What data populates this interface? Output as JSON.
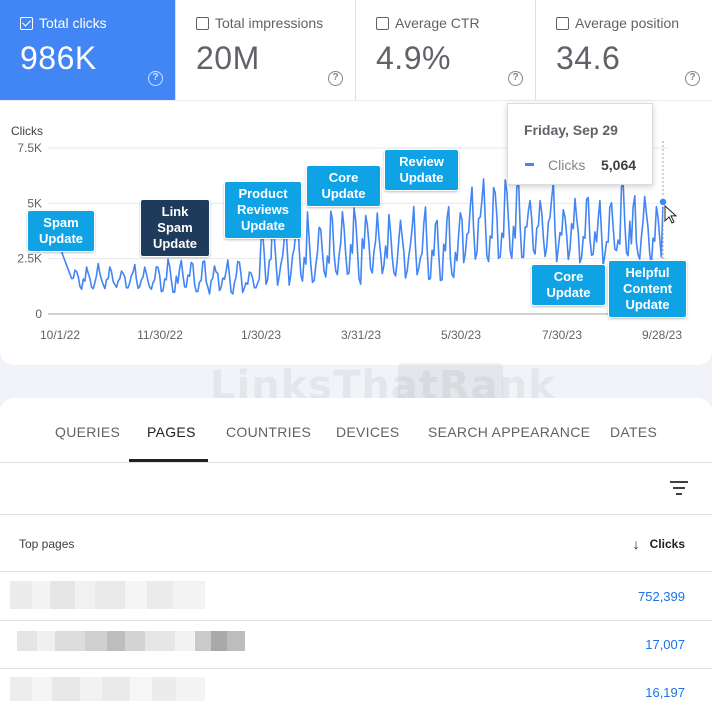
{
  "metrics": [
    {
      "label": "Total clicks",
      "value": "986K",
      "checked": true
    },
    {
      "label": "Total impressions",
      "value": "20M",
      "checked": false
    },
    {
      "label": "Average CTR",
      "value": "4.9%",
      "checked": false
    },
    {
      "label": "Average position",
      "value": "34.6",
      "checked": false
    }
  ],
  "chart": {
    "y_title": "Clicks",
    "watermark": "LinksThatRank",
    "tooltip": {
      "date": "Friday, Sep 29",
      "series": "Clicks",
      "value": "5,064"
    },
    "annotations": [
      {
        "text": "Spam\nUpdate",
        "style": "light"
      },
      {
        "text": "Link\nSpam\nUpdate",
        "style": "dark"
      },
      {
        "text": "Product\nReviews\nUpdate",
        "style": "light"
      },
      {
        "text": "Core\nUpdate",
        "style": "light"
      },
      {
        "text": "Review\nUpdate",
        "style": "light"
      },
      {
        "text": "Core\nUpdate",
        "style": "light"
      },
      {
        "text": "Helpful\nContent\nUpdate",
        "style": "light"
      }
    ]
  },
  "chart_data": {
    "type": "line",
    "ylabel": "Clicks",
    "ylim": [
      0,
      7500
    ],
    "yticks": [
      "0",
      "2.5K",
      "5K",
      "7.5K"
    ],
    "xticks": [
      "10/1/22",
      "11/30/22",
      "1/30/23",
      "3/31/23",
      "5/30/23",
      "7/30/23",
      "9/28/23"
    ],
    "series": [
      {
        "name": "Clicks",
        "color": "#4285f4",
        "segments": [
          {
            "from": "10/1/22",
            "to": "11/30/22",
            "low": 1100,
            "high": 2300
          },
          {
            "from": "11/30/22",
            "to": "1/30/23",
            "low": 900,
            "high": 2600
          },
          {
            "from": "1/30/23",
            "to": "3/31/23",
            "low": 1300,
            "high": 4800
          },
          {
            "from": "3/31/23",
            "to": "5/30/23",
            "low": 1500,
            "high": 5000
          },
          {
            "from": "5/30/23",
            "to": "7/30/23",
            "low": 2300,
            "high": 6200
          },
          {
            "from": "7/30/23",
            "to": "9/28/23",
            "low": 2200,
            "high": 6000
          }
        ],
        "last_point": {
          "x": "9/29/23",
          "y": 5064
        }
      }
    ]
  },
  "tabs": [
    "QUERIES",
    "PAGES",
    "COUNTRIES",
    "DEVICES",
    "SEARCH APPEARANCE",
    "DATES"
  ],
  "active_tab": "PAGES",
  "table": {
    "col_pages": "Top pages",
    "col_clicks": "Clicks",
    "rows": [
      {
        "clicks": "752,399"
      },
      {
        "clicks": "17,007"
      },
      {
        "clicks": "16,197"
      }
    ]
  }
}
